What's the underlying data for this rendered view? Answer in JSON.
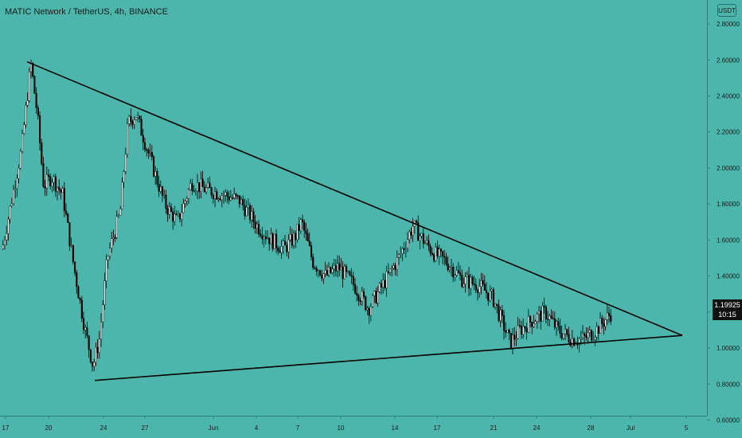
{
  "header": {
    "title": "MATIC Network / TetherUS, 4h, BINANCE",
    "currency": "USDT"
  },
  "badge": {
    "price": "1.19925",
    "countdown": "10:15"
  },
  "colors": {
    "background": "#4db6ac",
    "candle_up": "#ffffff",
    "candle_down": "#000000",
    "trendline": "#000000"
  },
  "chart_data": {
    "type": "candlestick",
    "x_tick_labels": [
      "17",
      "20",
      "24",
      "27",
      "Jun",
      "4",
      "7",
      "10",
      "14",
      "17",
      "21",
      "24",
      "28",
      "Jul",
      "5"
    ],
    "y_tick_labels": [
      "2.80000",
      "2.60000",
      "2.40000",
      "2.20000",
      "2.00000",
      "1.80000",
      "1.60000",
      "1.40000",
      "1.20000",
      "1.00000",
      "0.80000",
      "0.60000"
    ],
    "ylim": [
      0.58,
      2.88
    ],
    "grid": false,
    "last_price": 1.19925,
    "close_path": [
      [
        "May 17",
        1.55
      ],
      [
        "May 18",
        2.1
      ],
      [
        "May 18 12h",
        2.58
      ],
      [
        "May 19",
        2.3
      ],
      [
        "May 19 12h",
        1.9
      ],
      [
        "May 20",
        1.95
      ],
      [
        "May 21",
        1.85
      ],
      [
        "May 22",
        1.45
      ],
      [
        "May 23",
        1.1
      ],
      [
        "May 23 12h",
        0.9
      ],
      [
        "May 24",
        1.05
      ],
      [
        "May 25",
        1.5
      ],
      [
        "May 26",
        1.75
      ],
      [
        "May 26 12h",
        2.25
      ],
      [
        "May 27",
        2.3
      ],
      [
        "May 28",
        2.05
      ],
      [
        "May 29",
        1.8
      ],
      [
        "May 30",
        1.7
      ],
      [
        "May 31",
        1.92
      ],
      [
        "Jun 1",
        1.88
      ],
      [
        "Jun 2",
        1.85
      ],
      [
        "Jun 3",
        1.82
      ],
      [
        "Jun 4",
        1.68
      ],
      [
        "Jun 5",
        1.6
      ],
      [
        "Jun 6",
        1.55
      ],
      [
        "Jun 7",
        1.62
      ],
      [
        "Jun 7 12h",
        1.7
      ],
      [
        "Jun 8",
        1.48
      ],
      [
        "Jun 9",
        1.4
      ],
      [
        "Jun 10",
        1.45
      ],
      [
        "Jun 11",
        1.35
      ],
      [
        "Jun 12",
        1.22
      ],
      [
        "Jun 13",
        1.35
      ],
      [
        "Jun 14",
        1.5
      ],
      [
        "Jun 15",
        1.68
      ],
      [
        "Jun 16",
        1.58
      ],
      [
        "Jun 17",
        1.52
      ],
      [
        "Jun 18",
        1.48
      ],
      [
        "Jun 19",
        1.38
      ],
      [
        "Jun 20",
        1.35
      ],
      [
        "Jun 21",
        1.28
      ],
      [
        "Jun 22",
        1.03
      ],
      [
        "Jun 22 12h",
        1.1
      ],
      [
        "Jun 23",
        1.15
      ],
      [
        "Jun 24",
        1.2
      ],
      [
        "Jun 25",
        1.1
      ],
      [
        "Jun 26",
        1.05
      ],
      [
        "Jun 27",
        1.05
      ],
      [
        "Jun 28",
        1.1
      ],
      [
        "Jun 29",
        1.15
      ],
      [
        "Jun 29 12h",
        1.2
      ]
    ],
    "trendlines": [
      {
        "name": "descending resistance",
        "from": [
          "May 18",
          2.59
        ],
        "to": [
          "Jul 5",
          1.07
        ]
      },
      {
        "name": "ascending support",
        "from": [
          "May 23",
          0.82
        ],
        "to": [
          "Jul 5",
          1.07
        ]
      }
    ]
  }
}
